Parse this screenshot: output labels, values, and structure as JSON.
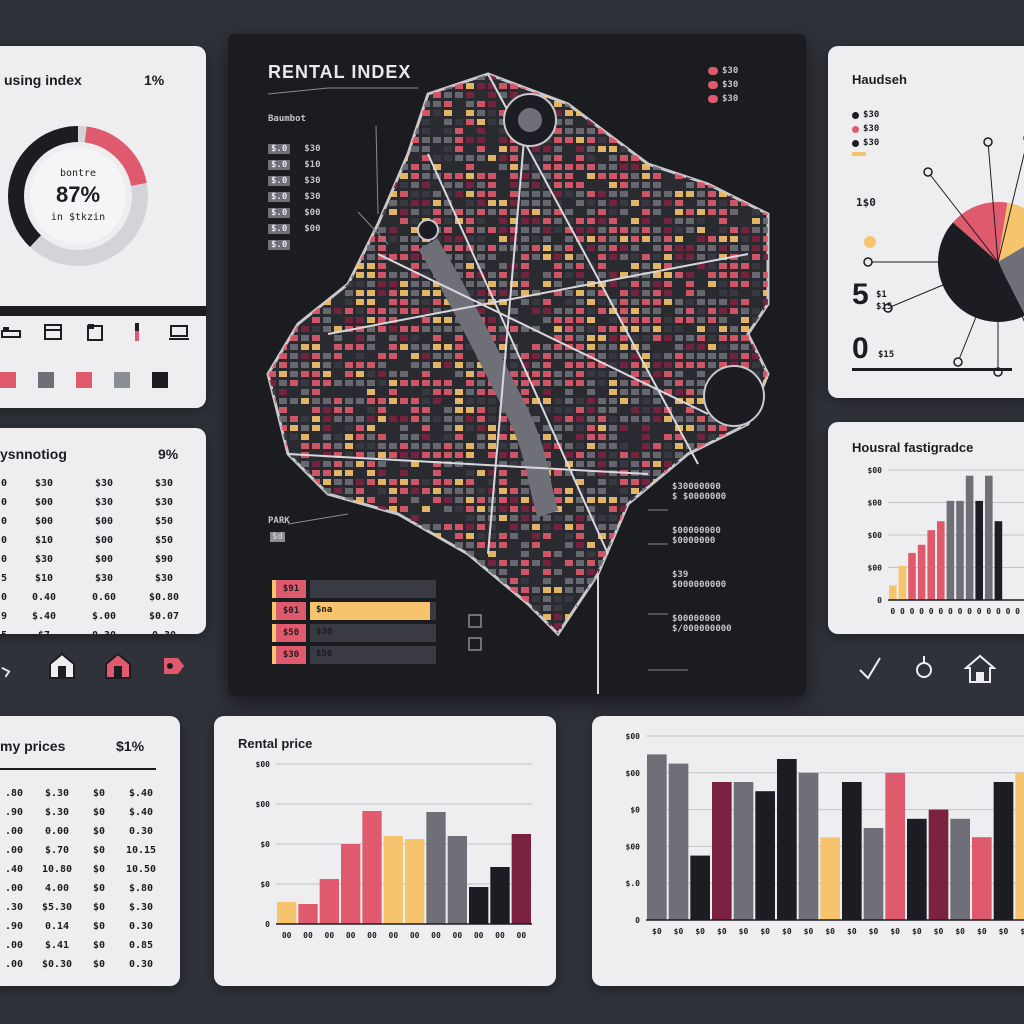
{
  "housing_card": {
    "title": "using index",
    "pct": "1%",
    "donut_top": "bontre",
    "donut_value": "87%",
    "donut_bottom": "in $tkzin",
    "donut_fraction": 0.87
  },
  "palette": [
    "#e05a6d",
    "#6e6f77",
    "#e05a6d",
    "#8a8c94",
    "#1c1d22"
  ],
  "sync_card": {
    "title": "ysnnotiog",
    "pct": "9%",
    "rows": [
      [
        "0",
        "$30",
        "$30",
        "$30"
      ],
      [
        "0",
        "$00",
        "$30",
        "$30"
      ],
      [
        "0",
        "$00",
        "$00",
        "$50"
      ],
      [
        "0",
        "$10",
        "$00",
        "$50"
      ],
      [
        "0",
        "$30",
        "$00",
        "$90"
      ],
      [
        "5",
        "$10",
        "$30",
        "$30"
      ],
      [
        "0",
        "0.40",
        "0.60",
        "$0.80"
      ],
      [
        "9",
        "$.40",
        "$.00",
        "$0.07"
      ],
      [
        "5",
        "$7",
        "0.30",
        "0.30"
      ]
    ]
  },
  "map_card": {
    "title": "RENTAL INDEX",
    "label_district": "Baumbot",
    "left_labels": [
      "$.0",
      "$.0",
      "$.0",
      "$.0",
      "$.0",
      "$.0",
      "$.0"
    ],
    "left_values": [
      "$30",
      "$10",
      "$30",
      "$30",
      "$00",
      "$00"
    ],
    "legend_top": [
      "$30",
      "$30",
      "$30"
    ],
    "label_park": "PARK",
    "label_park_value": "$d",
    "bars": [
      {
        "code": "$91",
        "label": "",
        "fill": 0.0
      },
      {
        "code": "$01",
        "label": "$na",
        "fill": 0.95
      },
      {
        "code": "$50",
        "label": "$30",
        "fill": 0.0
      },
      {
        "code": "$30",
        "label": "$50",
        "fill": 0.0
      }
    ],
    "right_labels": [
      {
        "title": "$30000000",
        "sub": "$ $0000000"
      },
      {
        "title": "$00000000",
        "sub": "$0000000"
      },
      {
        "title": "$39",
        "sub": "$000000000"
      },
      {
        "title": "$00000000",
        "sub": "$/000000000"
      }
    ]
  },
  "household_card": {
    "title": "Haudseh",
    "legend": [
      "$30",
      "$30",
      "$30"
    ],
    "big_number": "5",
    "big_number_sub1": "$1",
    "big_number_sub2": "$15",
    "zero_number": "0",
    "zero_sub": "$15",
    "side_value": "1$0",
    "pie": [
      {
        "value": 44,
        "color": "#1c1d22"
      },
      {
        "value": 16,
        "color": "#e05a6d"
      },
      {
        "value": 14,
        "color": "#f5c46c"
      },
      {
        "value": 26,
        "color": "#6e6f77"
      }
    ]
  },
  "growth_card": {
    "title": "Housral fastigradce",
    "yticks": [
      "$00",
      "$00",
      "$00",
      "$00",
      "0"
    ],
    "chart_data": {
      "type": "bar",
      "categories": [
        "0",
        "0",
        "0",
        "0",
        "0",
        "0",
        "0",
        "0",
        "0",
        "0",
        "0",
        "0",
        "0",
        "0",
        "0"
      ],
      "values": [
        18,
        42,
        58,
        68,
        86,
        97,
        122,
        122,
        153,
        122,
        153,
        97,
        0,
        0,
        0
      ],
      "colors": [
        "#f5c46c",
        "#f5c46c",
        "#e05a6d",
        "#e05a6d",
        "#e05a6d",
        "#e05a6d",
        "#6e6f77",
        "#6e6f77",
        "#6e6f77",
        "#1c1d22",
        "#6e6f77",
        "#1c1d22",
        "#1c1d22",
        "#1c1d22",
        "#1c1d22"
      ],
      "ylim": [
        0,
        160
      ]
    }
  },
  "prices_card": {
    "title": "my prices",
    "pct": "$1%",
    "rows": [
      [
        ".80",
        "$.30",
        "$0",
        "$.40"
      ],
      [
        ".90",
        "$.30",
        "$0",
        "$.40"
      ],
      [
        ".00",
        "0.00",
        "$0",
        "0.30"
      ],
      [
        ".00",
        "$.70",
        "$0",
        "10.15"
      ],
      [
        ".40",
        "10.80",
        "$0",
        "10.50"
      ],
      [
        ".00",
        "4.00",
        "$0",
        "$.80"
      ],
      [
        ".30",
        "$5.30",
        "$0",
        "$.30"
      ],
      [
        ".90",
        "0.14",
        "$0",
        "0.30"
      ],
      [
        ".00",
        "$.41",
        "$0",
        "0.85"
      ],
      [
        ".00",
        "$0.30",
        "$0",
        "0.30"
      ]
    ]
  },
  "rental_price_card": {
    "title": "Rental price",
    "yticks": [
      "$00",
      "$00",
      "$0",
      "$0",
      "0"
    ],
    "chart_data": {
      "type": "bar",
      "categories": [
        "00",
        "00",
        "00",
        "00",
        "00",
        "00",
        "00",
        "00",
        "00",
        "00",
        "00",
        "00"
      ],
      "values": [
        22,
        20,
        45,
        80,
        113,
        88,
        85,
        112,
        88,
        37,
        57,
        90
      ],
      "colors": [
        "#f5c46c",
        "#e05a6d",
        "#e05a6d",
        "#e05a6d",
        "#e05a6d",
        "#f5c46c",
        "#f5c46c",
        "#6e6f77",
        "#6e6f77",
        "#1c1d22",
        "#1c1d22",
        "#7b2240"
      ],
      "ylim": [
        0,
        160
      ]
    }
  },
  "big_chart_card": {
    "yticks": [
      "$00",
      "$00",
      "$0",
      "$00",
      "$.0",
      "0"
    ],
    "chart_data": {
      "type": "bar",
      "categories": [
        "$0",
        "$0",
        "$0",
        "$0",
        "$0",
        "$0",
        "$0",
        "$0",
        "$0",
        "$0",
        "$0",
        "$0",
        "$0",
        "$0",
        "$0",
        "$0",
        "$0",
        "$0"
      ],
      "series": [
        {
          "name": "",
          "values": [
            180,
            170,
            70,
            150,
            150,
            140,
            175,
            160,
            90,
            150,
            100,
            160,
            110,
            120,
            110,
            90,
            150,
            160
          ]
        }
      ],
      "colors": [
        "#6e6f77",
        "#6e6f77",
        "#1c1d22",
        "#7b2240",
        "#6e6f77",
        "#1c1d22",
        "#1c1d22",
        "#6e6f77",
        "#f5c46c",
        "#1c1d22",
        "#6e6f77",
        "#e05a6d",
        "#1c1d22",
        "#7b2240",
        "#6e6f77",
        "#e05a6d",
        "#1c1d22",
        "#f5c46c"
      ],
      "ylim": [
        0,
        200
      ]
    }
  }
}
